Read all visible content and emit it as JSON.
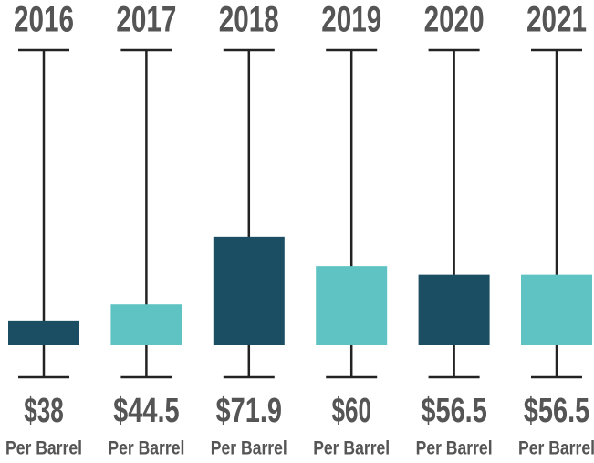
{
  "chart_data": {
    "type": "bar",
    "categories": [
      "2016",
      "2017",
      "2018",
      "2019",
      "2020",
      "2021"
    ],
    "values": [
      38,
      44.5,
      71.9,
      60,
      56.5,
      56.5
    ],
    "value_labels": [
      "$38",
      "$44.5",
      "$71.9",
      "$60",
      "$56.5",
      "$56.5"
    ],
    "unit_label": "Per Barrel",
    "colors": [
      "#1c4e63",
      "#5fc3c3",
      "#1c4e63",
      "#5fc3c3",
      "#1c4e63",
      "#5fc3c3"
    ],
    "ylim": [
      28,
      147
    ]
  }
}
